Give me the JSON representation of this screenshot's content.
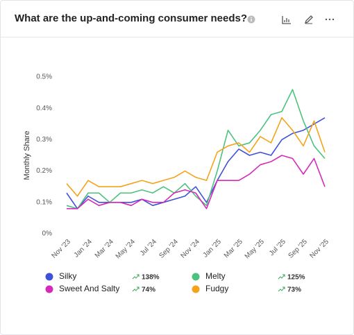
{
  "title": "What are the up-and-coming consumer needs?",
  "chart_data": {
    "type": "line",
    "y_label": "Monthly Share",
    "grid": false,
    "categories": [
      "Nov '23",
      null,
      "Jan '24",
      null,
      "Mar '24",
      null,
      "May '24",
      null,
      "Jul '24",
      null,
      "Sep '24",
      null,
      "Nov '24",
      null,
      "Jan '25",
      null,
      "Mar '25",
      null,
      "May '25",
      null,
      "Jul '25",
      null,
      "Sep '25",
      null,
      "Nov '25"
    ],
    "ylim": [
      0,
      0.5
    ],
    "yticks": [
      {
        "value": 0,
        "label": "0%"
      },
      {
        "value": 0.1,
        "label": "0.1%"
      },
      {
        "value": 0.2,
        "label": "0.2%"
      },
      {
        "value": 0.3,
        "label": "0.3%"
      },
      {
        "value": 0.4,
        "label": "0.4%"
      },
      {
        "value": 0.5,
        "label": "0.5%"
      }
    ],
    "series": [
      {
        "name": "Silky",
        "color": "#3f51d8",
        "change": "138%",
        "values": [
          0.13,
          0.08,
          0.12,
          0.1,
          0.1,
          0.1,
          0.1,
          0.11,
          0.09,
          0.1,
          0.11,
          0.12,
          0.15,
          0.1,
          0.17,
          0.23,
          0.27,
          0.25,
          0.26,
          0.25,
          0.3,
          0.32,
          0.33,
          0.35,
          0.37
        ]
      },
      {
        "name": "Melty",
        "color": "#4cc27f",
        "change": "125%",
        "values": [
          0.09,
          0.08,
          0.13,
          0.13,
          0.1,
          0.13,
          0.13,
          0.14,
          0.13,
          0.15,
          0.13,
          0.16,
          0.12,
          0.09,
          0.2,
          0.33,
          0.28,
          0.29,
          0.33,
          0.38,
          0.39,
          0.46,
          0.36,
          0.28,
          0.24
        ]
      },
      {
        "name": "Sweet And Salty",
        "color": "#d42bb8",
        "change": "74%",
        "values": [
          0.08,
          0.08,
          0.11,
          0.09,
          0.1,
          0.1,
          0.09,
          0.11,
          0.1,
          0.1,
          0.13,
          0.14,
          0.13,
          0.08,
          0.17,
          0.17,
          0.17,
          0.19,
          0.22,
          0.23,
          0.25,
          0.24,
          0.19,
          0.24,
          0.15
        ]
      },
      {
        "name": "Fudgy",
        "color": "#f5a31a",
        "change": "73%",
        "values": [
          0.16,
          0.12,
          0.17,
          0.15,
          0.15,
          0.15,
          0.16,
          0.17,
          0.16,
          0.17,
          0.18,
          0.2,
          0.18,
          0.17,
          0.26,
          0.28,
          0.29,
          0.26,
          0.31,
          0.29,
          0.37,
          0.33,
          0.28,
          0.36,
          0.26
        ]
      }
    ]
  }
}
